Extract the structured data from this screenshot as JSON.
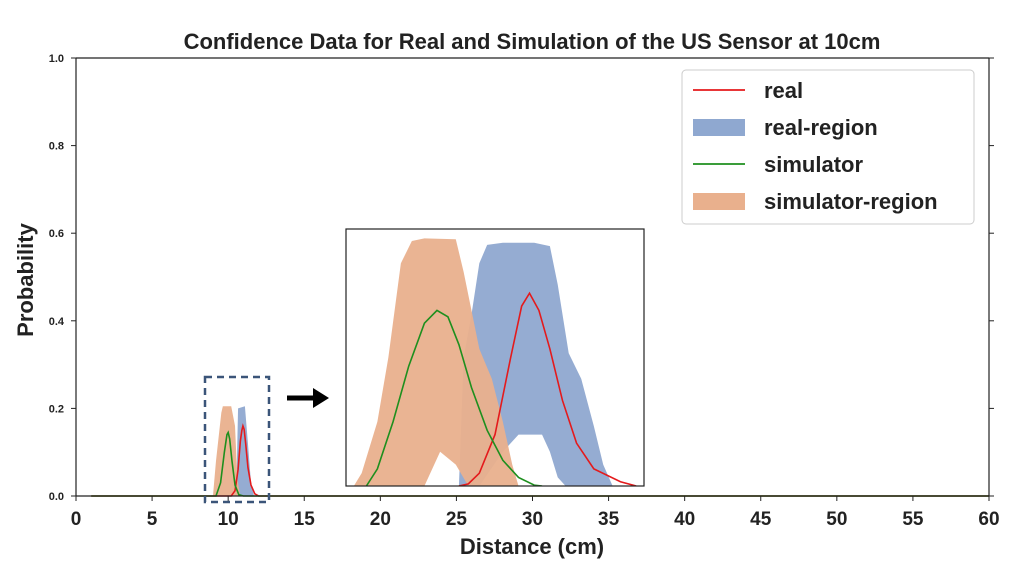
{
  "chart_data": {
    "type": "line",
    "title": "Confidence Data for Real and Simulation of the US Sensor at 10cm",
    "xlabel": "Distance (cm)",
    "ylabel": "Probability",
    "xlim": [
      0,
      60
    ],
    "ylim": [
      0,
      1.0
    ],
    "xticks": [
      "0",
      "5",
      "10",
      "15",
      "20",
      "25",
      "30",
      "35",
      "40",
      "45",
      "50",
      "55",
      "60"
    ],
    "yticks": [
      "0.0",
      "0.2",
      "0.4",
      "0.6",
      "0.8",
      "1.0"
    ],
    "grid": false,
    "legend_position": "top-right",
    "series": [
      {
        "name": "real",
        "kind": "line",
        "color": "#e41a1c",
        "points": [
          [
            1,
            0
          ],
          [
            8,
            0
          ],
          [
            10.2,
            0
          ],
          [
            10.45,
            0.012
          ],
          [
            10.65,
            0.06
          ],
          [
            10.8,
            0.125
          ],
          [
            10.9,
            0.15
          ],
          [
            10.97,
            0.16
          ],
          [
            11.05,
            0.152
          ],
          [
            11.15,
            0.12
          ],
          [
            11.3,
            0.065
          ],
          [
            11.5,
            0.025
          ],
          [
            11.75,
            0.005
          ],
          [
            12.0,
            0
          ],
          [
            60,
            0
          ]
        ]
      },
      {
        "name": "real-region",
        "kind": "band",
        "color": "#8fa8d0",
        "upper": [
          [
            10.45,
            0
          ],
          [
            10.55,
            0.04
          ],
          [
            10.65,
            0.2
          ],
          [
            11.1,
            0.205
          ],
          [
            11.3,
            0.12
          ],
          [
            11.5,
            0.03
          ],
          [
            11.7,
            0
          ]
        ],
        "lower": [
          [
            10.45,
            0
          ],
          [
            11.7,
            0
          ]
        ]
      },
      {
        "name": "simulator",
        "kind": "line",
        "color": "#1e8f1e",
        "points": [
          [
            1,
            0
          ],
          [
            8,
            0
          ],
          [
            9.2,
            0
          ],
          [
            9.5,
            0.03
          ],
          [
            9.75,
            0.1
          ],
          [
            9.92,
            0.14
          ],
          [
            10.0,
            0.145
          ],
          [
            10.1,
            0.13
          ],
          [
            10.25,
            0.08
          ],
          [
            10.45,
            0.025
          ],
          [
            10.7,
            0.003
          ],
          [
            11.0,
            0
          ],
          [
            60,
            0
          ]
        ]
      },
      {
        "name": "simulator-region",
        "kind": "band",
        "color": "#e9b08d",
        "upper": [
          [
            9.0,
            0
          ],
          [
            9.2,
            0.08
          ],
          [
            9.55,
            0.19
          ],
          [
            9.65,
            0.205
          ],
          [
            10.2,
            0.205
          ],
          [
            10.45,
            0.16
          ],
          [
            10.6,
            0.04
          ],
          [
            10.8,
            0
          ]
        ],
        "lower": [
          [
            9.0,
            0
          ],
          [
            10.8,
            0
          ]
        ]
      }
    ],
    "inset": {
      "type": "line",
      "xlim": [
        18,
        37
      ],
      "ylim": [
        0,
        0.6
      ],
      "series": [
        {
          "name": "real",
          "kind": "line",
          "color": "#e41a1c",
          "points": [
            [
              25.2,
              0
            ],
            [
              25.8,
              0.005
            ],
            [
              26.5,
              0.03
            ],
            [
              27.5,
              0.12
            ],
            [
              28.5,
              0.3
            ],
            [
              29.2,
              0.42
            ],
            [
              29.7,
              0.45
            ],
            [
              30.3,
              0.41
            ],
            [
              31.0,
              0.32
            ],
            [
              31.8,
              0.2
            ],
            [
              32.7,
              0.1
            ],
            [
              33.8,
              0.04
            ],
            [
              35.5,
              0.01
            ],
            [
              36.5,
              0
            ]
          ]
        },
        {
          "name": "real-region",
          "kind": "band",
          "color": "#8fa8d0",
          "upper": [
            [
              25.2,
              0
            ],
            [
              25.5,
              0.3
            ],
            [
              26.0,
              0.4
            ],
            [
              26.5,
              0.52
            ],
            [
              27.0,
              0.563
            ],
            [
              28.0,
              0.568
            ],
            [
              30.0,
              0.568
            ],
            [
              31.0,
              0.56
            ],
            [
              31.5,
              0.47
            ],
            [
              32.2,
              0.31
            ],
            [
              33.0,
              0.25
            ],
            [
              33.8,
              0.14
            ],
            [
              34.4,
              0.05
            ],
            [
              35.0,
              0
            ]
          ],
          "lower": [
            [
              25.2,
              0
            ],
            [
              26.5,
              0
            ],
            [
              28.0,
              0.08
            ],
            [
              29.0,
              0.12
            ],
            [
              30.5,
              0.12
            ],
            [
              31.0,
              0.08
            ],
            [
              31.5,
              0.02
            ],
            [
              32.0,
              0
            ],
            [
              35.0,
              0
            ]
          ]
        },
        {
          "name": "simulator",
          "kind": "line",
          "color": "#1e8f1e",
          "points": [
            [
              19.3,
              0
            ],
            [
              20.0,
              0.04
            ],
            [
              21.0,
              0.15
            ],
            [
              22.0,
              0.28
            ],
            [
              23.0,
              0.38
            ],
            [
              23.8,
              0.41
            ],
            [
              24.5,
              0.395
            ],
            [
              25.2,
              0.33
            ],
            [
              26.0,
              0.23
            ],
            [
              27.0,
              0.13
            ],
            [
              28.0,
              0.06
            ],
            [
              29.0,
              0.02
            ],
            [
              30.0,
              0.002
            ],
            [
              30.5,
              0
            ]
          ]
        },
        {
          "name": "simulator-region",
          "kind": "band",
          "color": "#e9b08d",
          "upper": [
            [
              18.5,
              0
            ],
            [
              19.0,
              0.03
            ],
            [
              20.0,
              0.15
            ],
            [
              20.7,
              0.3
            ],
            [
              21.5,
              0.52
            ],
            [
              22.2,
              0.572
            ],
            [
              23.0,
              0.578
            ],
            [
              25.0,
              0.576
            ],
            [
              25.5,
              0.5
            ],
            [
              26.5,
              0.32
            ],
            [
              27.3,
              0.25
            ],
            [
              28.0,
              0.15
            ],
            [
              28.6,
              0.05
            ],
            [
              29.0,
              0
            ]
          ],
          "lower": [
            [
              18.5,
              0
            ],
            [
              23.0,
              0
            ],
            [
              24.0,
              0.08
            ],
            [
              25.0,
              0.05
            ],
            [
              25.8,
              0
            ],
            [
              29.0,
              0
            ]
          ]
        }
      ]
    }
  }
}
